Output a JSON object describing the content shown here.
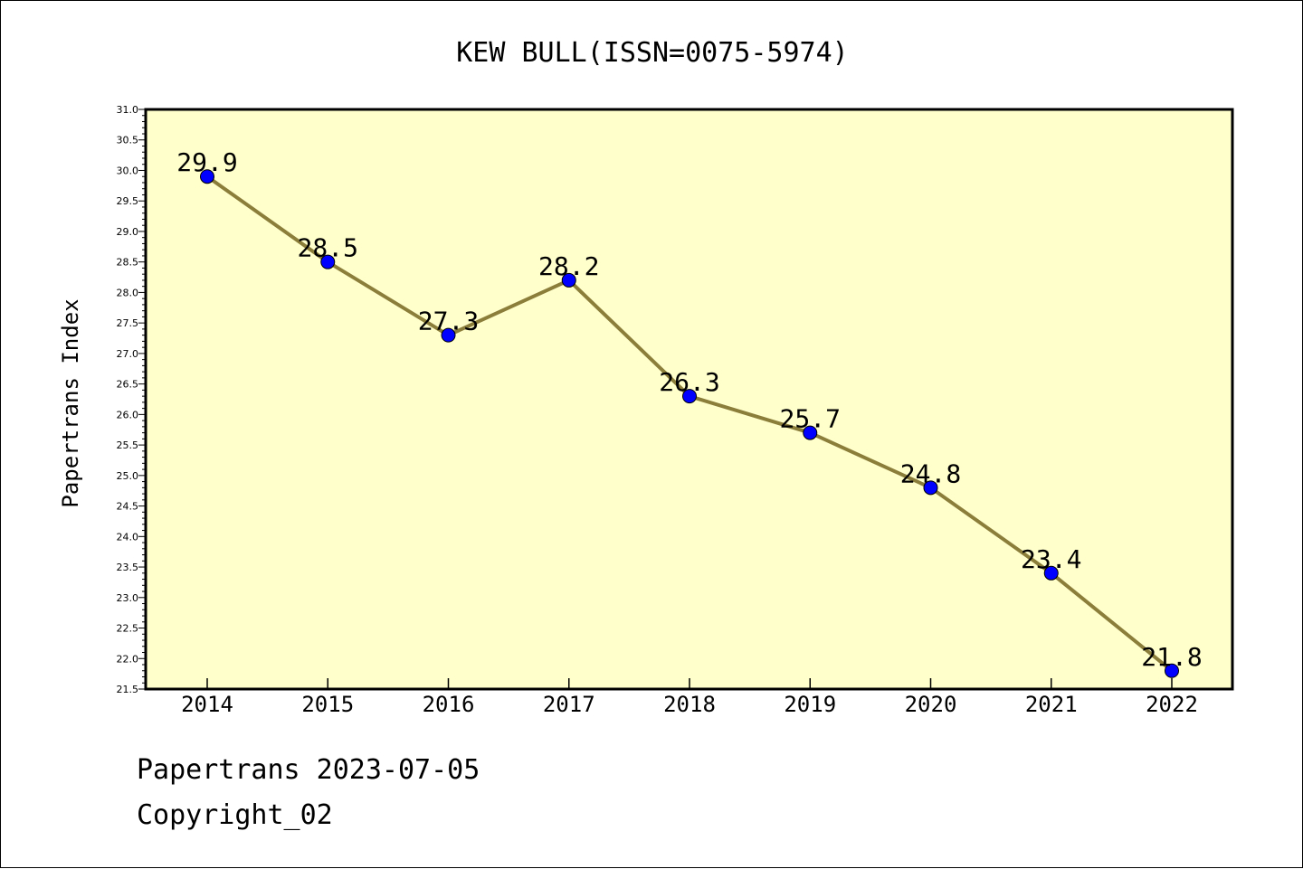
{
  "chart_data": {
    "type": "line",
    "title": "KEW BULL(ISSN=0075-5974)",
    "xlabel": "",
    "ylabel": "Papertrans Index",
    "categories": [
      "2014",
      "2015",
      "2016",
      "2017",
      "2018",
      "2019",
      "2020",
      "2021",
      "2022"
    ],
    "series": [
      {
        "values": [
          29.9,
          28.5,
          27.3,
          28.2,
          26.3,
          25.7,
          24.8,
          23.4,
          21.8
        ],
        "data_labels": [
          "29.9",
          "28.5",
          "27.3",
          "28.2",
          "26.3",
          "25.7",
          "24.8",
          "23.4",
          "21.8"
        ]
      }
    ],
    "ylim": [
      21.5,
      31.0
    ],
    "yticks": [
      "21.5",
      "22.0",
      "22.5",
      "23.0",
      "23.5",
      "24.0",
      "24.5",
      "25.0",
      "25.5",
      "26.0",
      "26.5",
      "27.0",
      "27.5",
      "28.0",
      "28.5",
      "29.0",
      "29.5",
      "30.0",
      "30.5",
      "31.0"
    ],
    "grid": false,
    "colors": {
      "plot_background": "#ffffcc",
      "line": "#8b7d3a",
      "marker": "#0000ff"
    }
  },
  "footer": {
    "line1": "Papertrans 2023-07-05",
    "line2": "Copyright_02"
  }
}
